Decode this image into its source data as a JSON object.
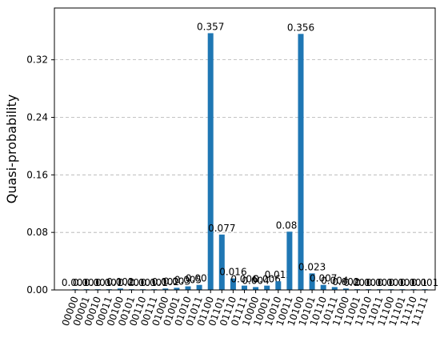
{
  "chart_data": {
    "type": "bar",
    "y_label": "Quasi-probability",
    "categories": [
      "00000",
      "00001",
      "00010",
      "00011",
      "00100",
      "00101",
      "00110",
      "00111",
      "01000",
      "01001",
      "01010",
      "01011",
      "01100",
      "01101",
      "01110",
      "01111",
      "10000",
      "10001",
      "10010",
      "10011",
      "10100",
      "10101",
      "10110",
      "10111",
      "11000",
      "11001",
      "11010",
      "11011",
      "11100",
      "11101",
      "11110",
      "11111"
    ],
    "values": [
      0.001,
      0.001,
      0.001,
      0.001,
      0.002,
      0.001,
      0.001,
      0.001,
      0.002,
      0.003,
      0.005,
      0.007,
      0.357,
      0.077,
      0.016,
      0.006,
      0.004,
      0.006,
      0.012,
      0.081,
      0.356,
      0.023,
      0.007,
      0.004,
      0.002,
      0.001,
      0.001,
      0.001,
      0.001,
      0.001,
      0.001,
      0.001
    ],
    "color": "#1f77b4",
    "ylim": [
      0,
      0.392
    ],
    "yticks": [
      {
        "value": 0,
        "label": "0.00"
      },
      0.08,
      0.16,
      0.24,
      0.32
    ],
    "grid": true
  }
}
